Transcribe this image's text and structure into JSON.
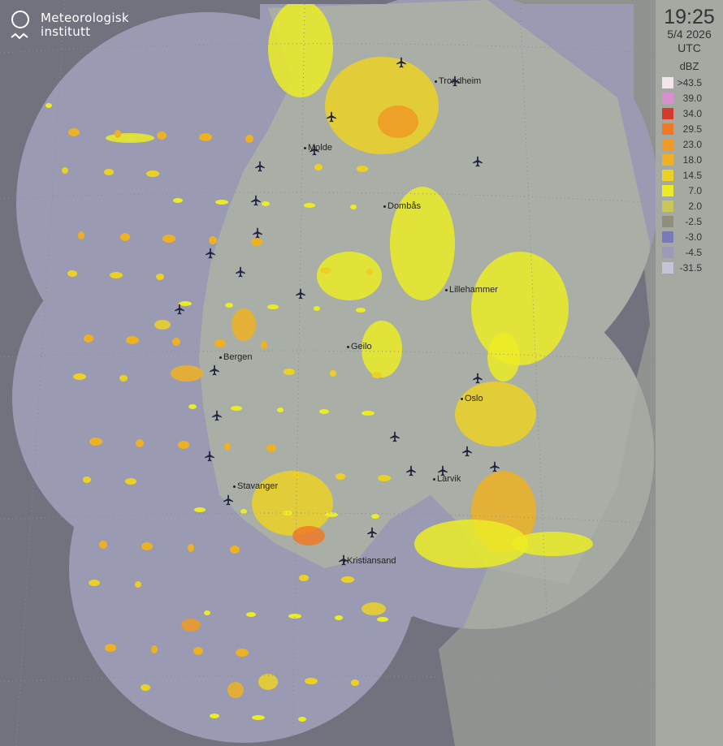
{
  "logo": {
    "line1": "Meteorologisk",
    "line2": "institutt"
  },
  "timestamp": {
    "time": "19:25",
    "date": "5/4 2026",
    "timezone": "UTC"
  },
  "legend": {
    "unit": "dBZ",
    "items": [
      {
        "label": ">43.5",
        "color": "#f2e6ea"
      },
      {
        "label": "39.0",
        "color": "#d98fcf"
      },
      {
        "label": "34.0",
        "color": "#d53a2b"
      },
      {
        "label": "29.5",
        "color": "#ee7a26"
      },
      {
        "label": "23.0",
        "color": "#ef9a25"
      },
      {
        "label": "18.0",
        "color": "#eeb123"
      },
      {
        "label": "14.5",
        "color": "#ecd124"
      },
      {
        "label": "7.0",
        "color": "#ecec24"
      },
      {
        "label": "2.0",
        "color": "#c9c757"
      },
      {
        "label": "-2.5",
        "color": "#8f8f7c"
      },
      {
        "label": "-3.0",
        "color": "#7a7ab8"
      },
      {
        "label": "-4.5",
        "color": "#9b9bb8"
      },
      {
        "label": "-31.5",
        "color": "#c4c4d8"
      }
    ]
  },
  "cities": [
    {
      "name": "Trondheim"
    },
    {
      "name": "Molde"
    },
    {
      "name": "Dombås"
    },
    {
      "name": "Lillehammer"
    },
    {
      "name": "Geilo"
    },
    {
      "name": "Bergen"
    },
    {
      "name": "Oslo"
    },
    {
      "name": "Larvik"
    },
    {
      "name": "Stavanger"
    },
    {
      "name": "Kristiansand"
    }
  ],
  "airport_icon": "airplane-icon",
  "colors": {
    "background": "#72727f",
    "radar_coverage": "#9a9ab2",
    "land": "#a9aea6"
  }
}
